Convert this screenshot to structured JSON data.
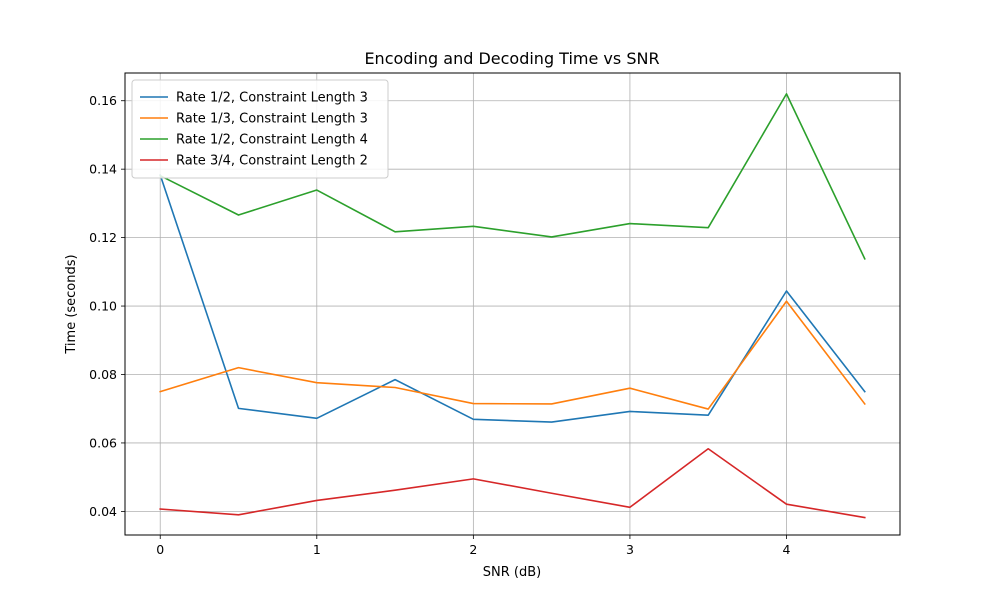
{
  "chart_data": {
    "type": "line",
    "title": "Encoding and Decoding Time vs SNR",
    "xlabel": "SNR (dB)",
    "ylabel": "Time (seconds)",
    "xlim": [
      -0.225,
      4.725
    ],
    "ylim": [
      0.0331,
      0.1681
    ],
    "x_ticks": [
      0,
      1,
      2,
      3,
      4
    ],
    "x_tick_labels": [
      "0",
      "1",
      "2",
      "3",
      "4"
    ],
    "y_ticks": [
      0.04,
      0.06,
      0.08,
      0.1,
      0.12,
      0.14,
      0.16
    ],
    "y_tick_labels": [
      "0.04",
      "0.06",
      "0.08",
      "0.10",
      "0.12",
      "0.14",
      "0.16"
    ],
    "grid": true,
    "legend_position": "top-left",
    "x": [
      0,
      0.5,
      1,
      1.5,
      2,
      2.5,
      3,
      3.5,
      4,
      4.5
    ],
    "series": [
      {
        "name": "Rate 1/2, Constraint Length 3",
        "color": "#1f77b4",
        "values": [
          0.1383,
          0.0701,
          0.0672,
          0.0785,
          0.0669,
          0.0661,
          0.0692,
          0.0681,
          0.1044,
          0.075
        ]
      },
      {
        "name": "Rate 1/3, Constraint Length 3",
        "color": "#ff7f0e",
        "values": [
          0.075,
          0.082,
          0.0776,
          0.0762,
          0.0715,
          0.0714,
          0.076,
          0.0699,
          0.1014,
          0.0714
        ]
      },
      {
        "name": "Rate 1/2, Constraint Length 4",
        "color": "#2ca02c",
        "values": [
          0.1381,
          0.1266,
          0.1339,
          0.1217,
          0.1233,
          0.1202,
          0.1241,
          0.1229,
          0.162,
          0.1138
        ]
      },
      {
        "name": "Rate 3/4, Constraint Length 2",
        "color": "#d62728",
        "values": [
          0.0407,
          0.039,
          0.0432,
          0.0462,
          0.0495,
          0.0453,
          0.0412,
          0.0583,
          0.0421,
          0.0382
        ]
      }
    ]
  }
}
